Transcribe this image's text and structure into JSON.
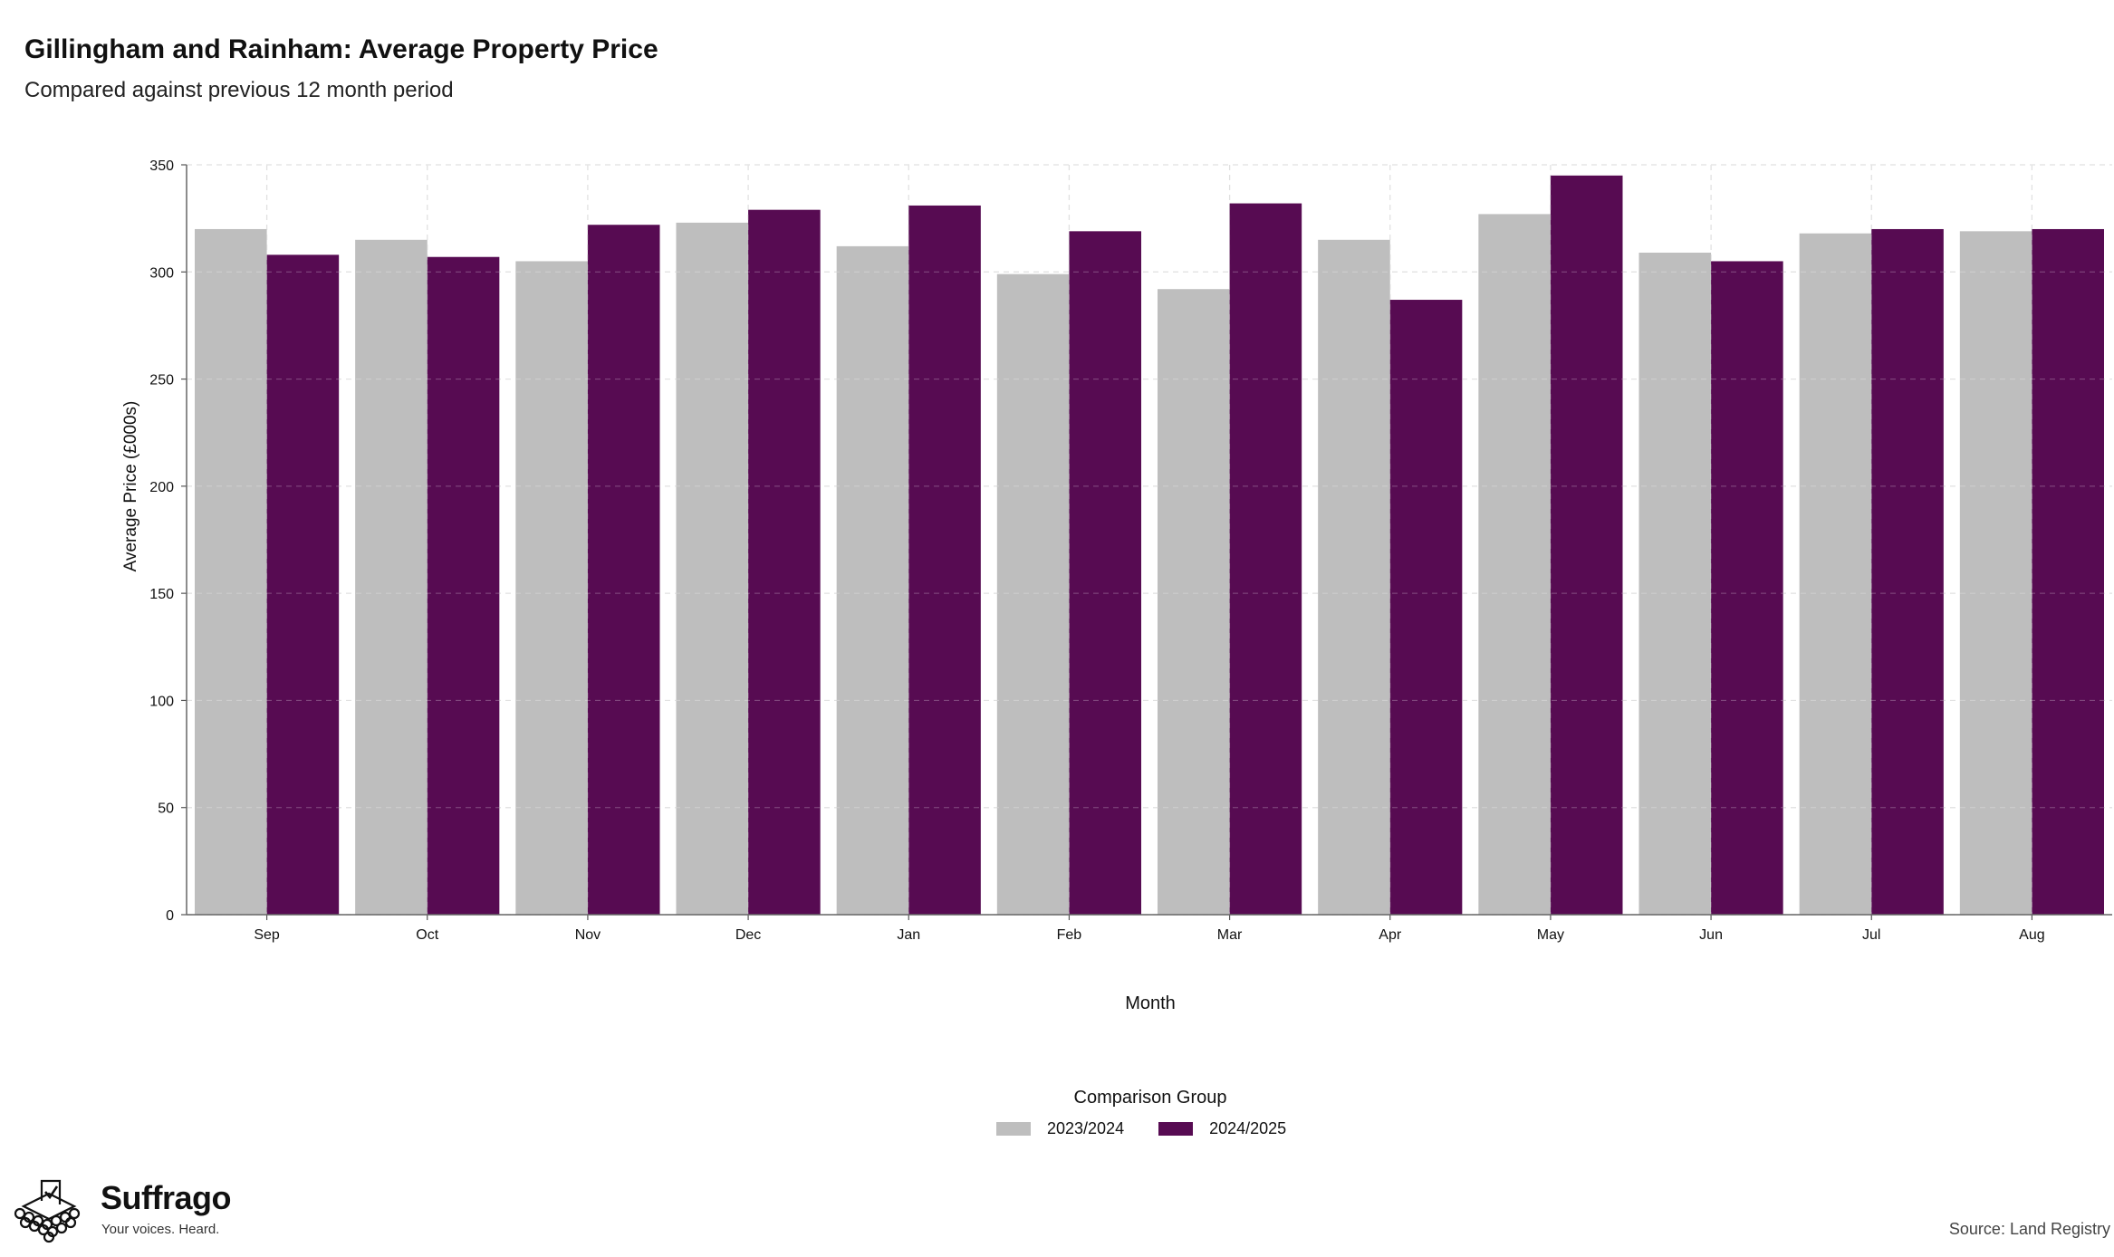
{
  "header": {
    "title": "Gillingham and Rainham: Average Property Price",
    "subtitle": "Compared against previous 12 month period"
  },
  "chart_data": {
    "type": "bar",
    "categories": [
      "Sep",
      "Oct",
      "Nov",
      "Dec",
      "Jan",
      "Feb",
      "Mar",
      "Apr",
      "May",
      "Jun",
      "Jul",
      "Aug"
    ],
    "series": [
      {
        "name": "2023/2024",
        "color": "#bebebe",
        "values": [
          320,
          315,
          305,
          323,
          312,
          299,
          292,
          315,
          327,
          309,
          318,
          319
        ]
      },
      {
        "name": "2024/2025",
        "color": "#570b52",
        "values": [
          308,
          307,
          322,
          329,
          331,
          319,
          332,
          287,
          345,
          305,
          320,
          320
        ]
      }
    ],
    "xlabel": "Month",
    "ylabel": "Average Price (£000s)",
    "ylim": [
      0,
      350
    ],
    "yticks": [
      0,
      50,
      100,
      150,
      200,
      250,
      300,
      350
    ],
    "grid": true,
    "legend": {
      "title": "Comparison Group",
      "position": "bottom-center"
    }
  },
  "footer": {
    "brand_name": "Suffrago",
    "brand_tagline": "Your voices. Heard.",
    "source": "Source: Land Registry"
  }
}
